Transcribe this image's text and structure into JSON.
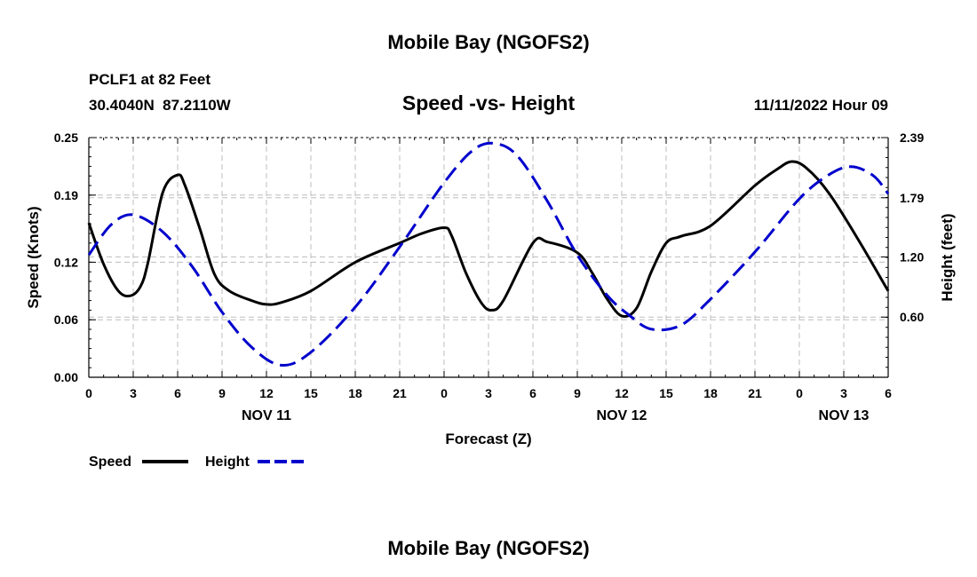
{
  "page": {
    "title_top": "Mobile Bay (NGOFS2)",
    "title_bottom": "Mobile Bay (NGOFS2)"
  },
  "chart_data": {
    "type": "line",
    "title": "Speed -vs- Height",
    "station_line1": "PCLF1 at 82 Feet",
    "station_line2": "30.4040N  87.2110W",
    "datetime": "11/11/2022 Hour 09",
    "xlabel": "Forecast (Z)",
    "ylabel_left": "Speed (Knots)",
    "ylabel_right": "Height (feet)",
    "xlim": [
      0,
      54
    ],
    "ylim_left": [
      0,
      0.25
    ],
    "ylim_right": [
      0.0,
      2.39
    ],
    "x_ticks": [
      {
        "x": 0,
        "label": "0"
      },
      {
        "x": 3,
        "label": "3"
      },
      {
        "x": 6,
        "label": "6"
      },
      {
        "x": 9,
        "label": "9"
      },
      {
        "x": 12,
        "label": "12"
      },
      {
        "x": 15,
        "label": "15"
      },
      {
        "x": 18,
        "label": "18"
      },
      {
        "x": 21,
        "label": "21"
      },
      {
        "x": 24,
        "label": "0"
      },
      {
        "x": 27,
        "label": "3"
      },
      {
        "x": 30,
        "label": "6"
      },
      {
        "x": 33,
        "label": "9"
      },
      {
        "x": 36,
        "label": "12"
      },
      {
        "x": 39,
        "label": "15"
      },
      {
        "x": 42,
        "label": "18"
      },
      {
        "x": 45,
        "label": "21"
      },
      {
        "x": 48,
        "label": "0"
      },
      {
        "x": 51,
        "label": "3"
      },
      {
        "x": 54,
        "label": "6"
      }
    ],
    "day_labels": [
      {
        "x": 12,
        "label": "NOV 11"
      },
      {
        "x": 36,
        "label": "NOV 12"
      },
      {
        "x": 51,
        "label": "NOV 13"
      }
    ],
    "y_ticks_left": [
      {
        "v": 0.0,
        "label": "0.00"
      },
      {
        "v": 0.06,
        "label": "0.06"
      },
      {
        "v": 0.12,
        "label": "0.12"
      },
      {
        "v": 0.19,
        "label": "0.19"
      },
      {
        "v": 0.25,
        "label": "0.25"
      }
    ],
    "y_ticks_right": [
      {
        "v": 0.6,
        "label": "0.60"
      },
      {
        "v": 1.2,
        "label": "1.20"
      },
      {
        "v": 1.79,
        "label": "1.79"
      },
      {
        "v": 2.39,
        "label": "2.39"
      }
    ],
    "series": [
      {
        "name": "Speed",
        "axis": "left",
        "color": "#000000",
        "dash": false,
        "points": [
          [
            0,
            0.161
          ],
          [
            1,
            0.118
          ],
          [
            2,
            0.09
          ],
          [
            2.8,
            0.085
          ],
          [
            3.5,
            0.095
          ],
          [
            4,
            0.12
          ],
          [
            5,
            0.193
          ],
          [
            6,
            0.211
          ],
          [
            6.5,
            0.2
          ],
          [
            7.5,
            0.155
          ],
          [
            8.5,
            0.107
          ],
          [
            9.5,
            0.09
          ],
          [
            11,
            0.08
          ],
          [
            12,
            0.076
          ],
          [
            13,
            0.078
          ],
          [
            15,
            0.09
          ],
          [
            18,
            0.12
          ],
          [
            21,
            0.14
          ],
          [
            22.5,
            0.15
          ],
          [
            24,
            0.156
          ],
          [
            24.5,
            0.148
          ],
          [
            25.5,
            0.108
          ],
          [
            26.5,
            0.078
          ],
          [
            27.2,
            0.07
          ],
          [
            28,
            0.08
          ],
          [
            30,
            0.14
          ],
          [
            31,
            0.141
          ],
          [
            33,
            0.13
          ],
          [
            34,
            0.109
          ],
          [
            35,
            0.082
          ],
          [
            36,
            0.064
          ],
          [
            37,
            0.072
          ],
          [
            38,
            0.11
          ],
          [
            39,
            0.14
          ],
          [
            40,
            0.147
          ],
          [
            42,
            0.158
          ],
          [
            45,
            0.2
          ],
          [
            46.5,
            0.217
          ],
          [
            47.5,
            0.225
          ],
          [
            48.5,
            0.218
          ],
          [
            50,
            0.192
          ],
          [
            52,
            0.143
          ],
          [
            54,
            0.09
          ]
        ]
      },
      {
        "name": "Height",
        "axis": "right",
        "color": "#0000cc",
        "dash": true,
        "points": [
          [
            0,
            1.22
          ],
          [
            1.5,
            1.52
          ],
          [
            3,
            1.62
          ],
          [
            5,
            1.45
          ],
          [
            7,
            1.1
          ],
          [
            9,
            0.65
          ],
          [
            11,
            0.3
          ],
          [
            13,
            0.12
          ],
          [
            15,
            0.25
          ],
          [
            18,
            0.7
          ],
          [
            21,
            1.3
          ],
          [
            24,
            1.94
          ],
          [
            26,
            2.27
          ],
          [
            27.5,
            2.33
          ],
          [
            29,
            2.2
          ],
          [
            31,
            1.75
          ],
          [
            33,
            1.22
          ],
          [
            35,
            0.82
          ],
          [
            36.5,
            0.62
          ],
          [
            38,
            0.48
          ],
          [
            40,
            0.52
          ],
          [
            42,
            0.78
          ],
          [
            45,
            1.25
          ],
          [
            48,
            1.78
          ],
          [
            50,
            2.02
          ],
          [
            51.5,
            2.1
          ],
          [
            53,
            2.01
          ],
          [
            54,
            1.83
          ]
        ]
      }
    ],
    "legend": [
      {
        "name": "Speed",
        "color": "#000000",
        "dash": false
      },
      {
        "name": "Height",
        "color": "#0000cc",
        "dash": true
      }
    ],
    "grid": true
  }
}
